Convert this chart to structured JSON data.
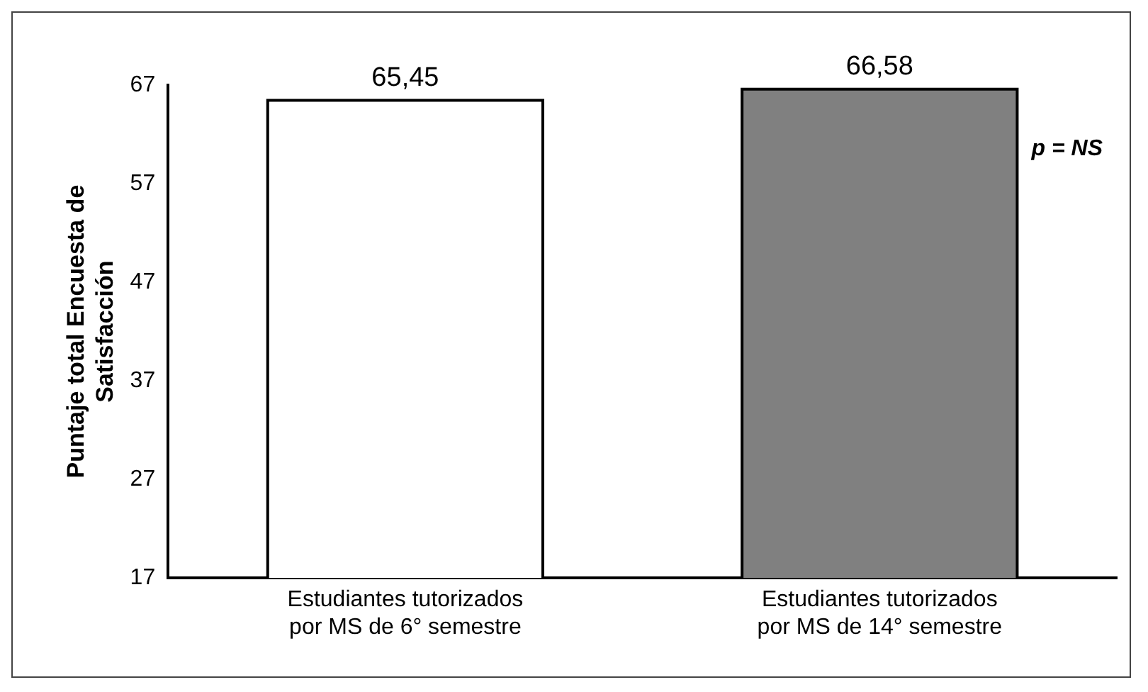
{
  "chart_data": {
    "type": "bar",
    "ylabel": "Puntaje total Encuesta de Satisfacción",
    "categories": [
      "Estudiantes tutorizados por MS de 6° semestre",
      "Estudiantes tutorizados por MS de 14° semestre"
    ],
    "values": [
      65.45,
      66.58
    ],
    "value_labels": [
      "65,45",
      "66,58"
    ],
    "colors": [
      "#ffffff",
      "#808080"
    ],
    "ylim": [
      17,
      67
    ],
    "yticks": [
      17,
      27,
      37,
      47,
      57,
      67
    ],
    "grid": false,
    "legend": false,
    "annotations": [
      "p = NS"
    ]
  }
}
